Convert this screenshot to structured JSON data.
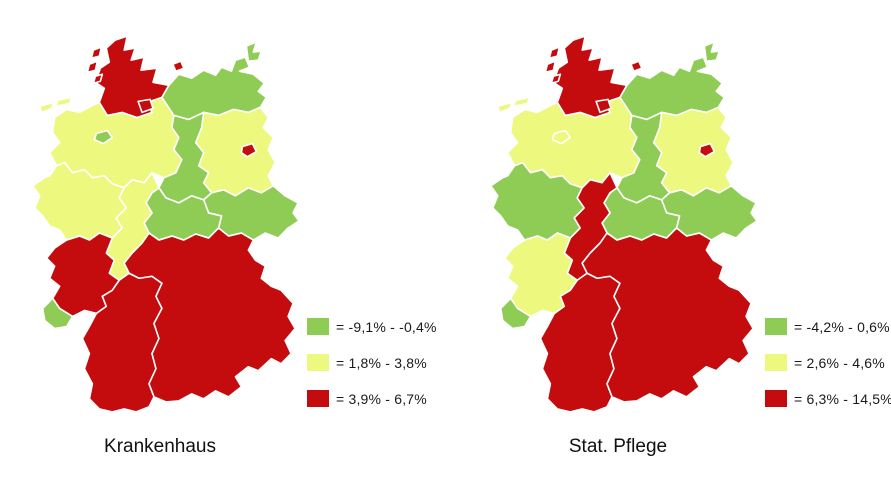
{
  "colors": {
    "green": "#8FCC55",
    "yellow": "#EDF87E",
    "red": "#C40B0D",
    "outline": "#FFFFFF",
    "text": "#1A1A1A",
    "background": "#FFFFFF"
  },
  "maps": [
    {
      "title": "Krankenhaus",
      "legend": [
        {
          "category": "green",
          "label": "= -9,1% - -0,4%"
        },
        {
          "category": "yellow",
          "label": "= 1,8% - 3,8%"
        },
        {
          "category": "red",
          "label": "= 3,9% - 6,7%"
        }
      ],
      "states": {
        "schleswig-holstein": "red",
        "hamburg": "red",
        "mecklenburg-vorpommern": "green",
        "niedersachsen": "yellow",
        "bremen": "green",
        "brandenburg": "yellow",
        "berlin": "red",
        "sachsen-anhalt": "green",
        "sachsen": "green",
        "thueringen": "green",
        "nordrhein-westfalen": "yellow",
        "hessen": "yellow",
        "rheinland-pfalz": "red",
        "saarland": "green",
        "baden-wuerttemberg": "red",
        "bayern": "red"
      }
    },
    {
      "title": "Stat. Pflege",
      "legend": [
        {
          "category": "green",
          "label": "= -4,2% - 0,6%"
        },
        {
          "category": "yellow",
          "label": "= 2,6% - 4,6%"
        },
        {
          "category": "red",
          "label": "= 6,3% - 14,5%"
        }
      ],
      "states": {
        "schleswig-holstein": "red",
        "hamburg": "red",
        "mecklenburg-vorpommern": "green",
        "niedersachsen": "yellow",
        "bremen": "yellow",
        "brandenburg": "yellow",
        "berlin": "red",
        "sachsen-anhalt": "green",
        "sachsen": "green",
        "thueringen": "green",
        "nordrhein-westfalen": "green",
        "hessen": "red",
        "rheinland-pfalz": "yellow",
        "saarland": "green",
        "baden-wuerttemberg": "red",
        "bayern": "red"
      }
    }
  ]
}
